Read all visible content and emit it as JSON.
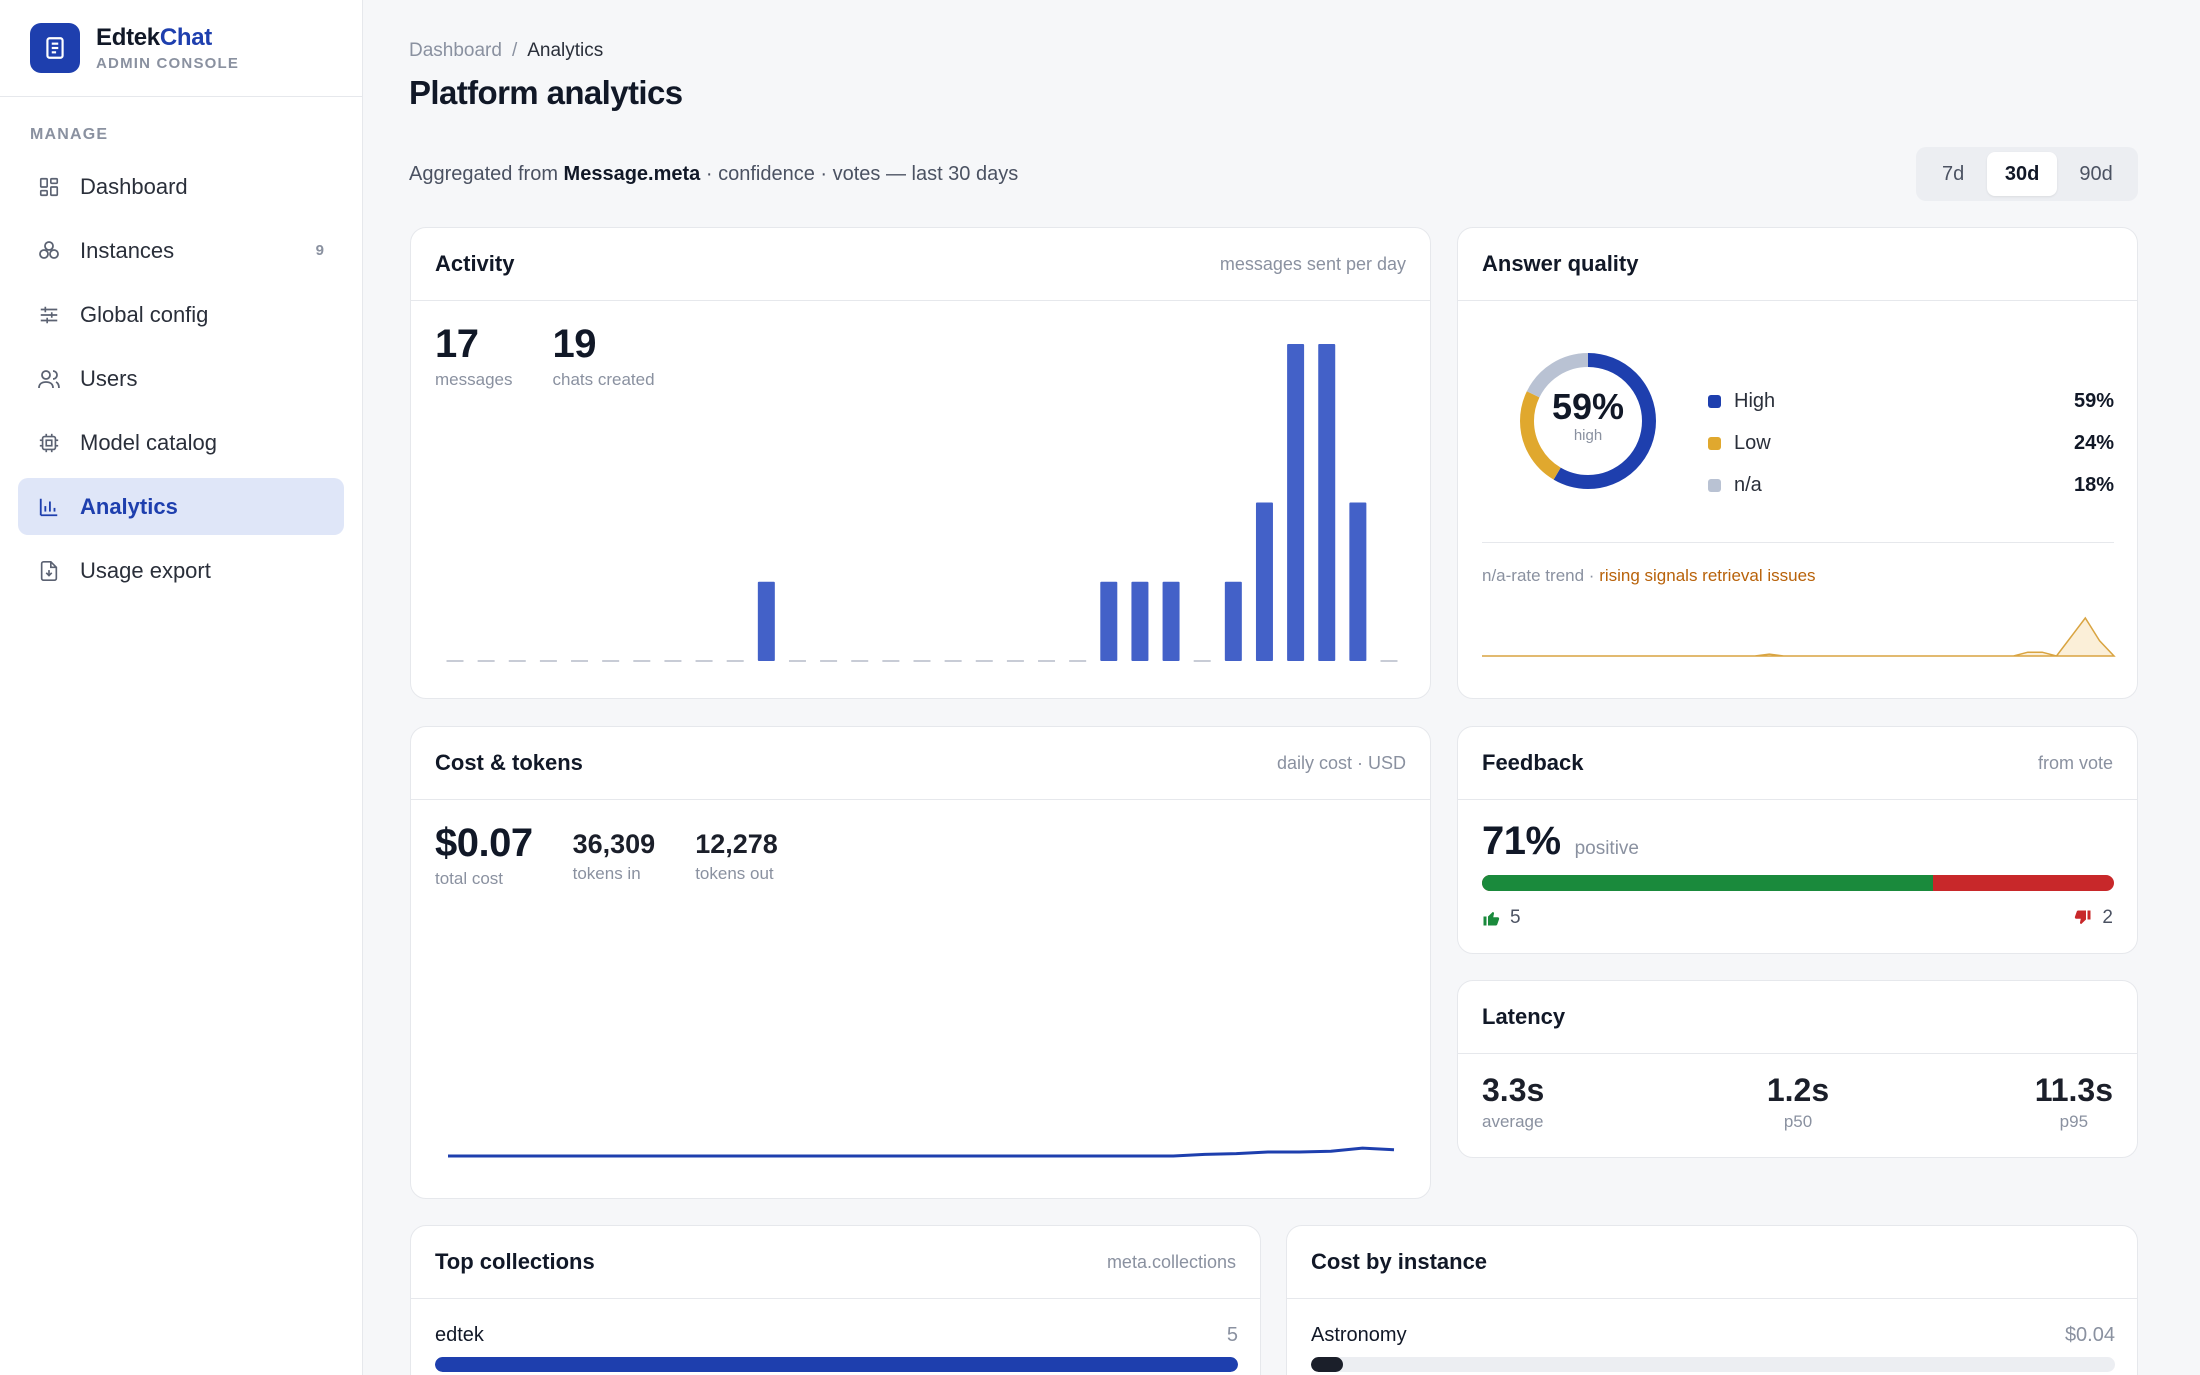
{
  "brand": {
    "name_main": "Edtek",
    "name_accent": "Chat",
    "subtitle": "ADMIN CONSOLE",
    "accent_color": "#1e3fae"
  },
  "sidebar": {
    "section": "MANAGE",
    "items": [
      {
        "label": "Dashboard",
        "icon": "grid-icon",
        "count": ""
      },
      {
        "label": "Instances",
        "icon": "cubes-icon",
        "count": "9"
      },
      {
        "label": "Global config",
        "icon": "sliders-icon",
        "count": ""
      },
      {
        "label": "Users",
        "icon": "users-icon",
        "count": ""
      },
      {
        "label": "Model catalog",
        "icon": "cpu-icon",
        "count": ""
      },
      {
        "label": "Analytics",
        "icon": "bar-chart-icon",
        "count": "",
        "active": true
      },
      {
        "label": "Usage export",
        "icon": "file-download-icon",
        "count": ""
      }
    ]
  },
  "header": {
    "breadcrumb": [
      "Dashboard",
      "Analytics"
    ],
    "title": "Platform analytics",
    "subtitle_pre": "Aggregated from",
    "subtitle_bold": "Message.meta",
    "subtitle_post": "· confidence · votes — last 30 days",
    "ranges": [
      "7d",
      "30d",
      "90d"
    ],
    "selected_range": "30d"
  },
  "activity": {
    "title": "Activity",
    "note": "messages sent per day",
    "messages_value": "17",
    "messages_label": "messages",
    "chats_value": "19",
    "chats_label": "chats created"
  },
  "quality": {
    "title": "Answer quality",
    "center_value": "59%",
    "center_label": "high",
    "legend": [
      {
        "label": "High",
        "value": "59%",
        "color": "#1e3fae"
      },
      {
        "label": "Low",
        "value": "24%",
        "color": "#e0a82e"
      },
      {
        "label": "n/a",
        "value": "18%",
        "color": "#b9c2d3"
      }
    ],
    "trend_label": "n/a-rate trend ·",
    "trend_warning": "rising signals retrieval issues",
    "warning_color": "#b8620a"
  },
  "cost": {
    "title": "Cost & tokens",
    "note": "daily cost · USD",
    "total_value": "$0.07",
    "total_label": "total cost",
    "tokens_in_value": "36,309",
    "tokens_in_label": "tokens in",
    "tokens_out_value": "12,278",
    "tokens_out_label": "tokens out"
  },
  "feedback": {
    "title": "Feedback",
    "note": "from vote",
    "percent": "71%",
    "percent_label": "positive",
    "up_count": "5",
    "down_count": "2",
    "positive_fraction": 0.714,
    "positive_color": "#1a8a3c",
    "negative_color": "#c8282a"
  },
  "latency": {
    "title": "Latency",
    "average_value": "3.3s",
    "average_label": "average",
    "p50_value": "1.2s",
    "p50_label": "p50",
    "p95_value": "11.3s",
    "p95_label": "p95"
  },
  "collections": {
    "title": "Top collections",
    "note": "meta.collections",
    "rows": [
      {
        "label": "edtek",
        "value": "5",
        "fraction": 1.0
      }
    ]
  },
  "cost_by_instance": {
    "title": "Cost by instance",
    "rows": [
      {
        "label": "Astronomy",
        "value": "$0.04",
        "fraction": 0.04
      }
    ]
  },
  "chart_data": [
    {
      "type": "bar",
      "title": "Activity",
      "ylabel": "messages sent per day",
      "x": [
        1,
        2,
        3,
        4,
        5,
        6,
        7,
        8,
        9,
        10,
        11,
        12,
        13,
        14,
        15,
        16,
        17,
        18,
        19,
        20,
        21,
        22,
        23,
        24,
        25,
        26,
        27,
        28,
        29,
        30,
        31
      ],
      "values": [
        0,
        0,
        0,
        0,
        0,
        0,
        0,
        0,
        0,
        0,
        1,
        0,
        0,
        0,
        0,
        0,
        0,
        0,
        0,
        0,
        0,
        1,
        1,
        1,
        0,
        1,
        2,
        4,
        4,
        2,
        0
      ],
      "ylim": [
        0,
        4
      ]
    },
    {
      "type": "pie",
      "title": "Answer quality",
      "categories": [
        "High",
        "Low",
        "n/a"
      ],
      "values": [
        59,
        24,
        18
      ]
    },
    {
      "type": "area",
      "title": "n/a-rate trend",
      "values": [
        0,
        0,
        0,
        0,
        0,
        0,
        0,
        0,
        0,
        0,
        0,
        0,
        0,
        0,
        0,
        0,
        0,
        0,
        0,
        0,
        0.05,
        0,
        0,
        0,
        0,
        0,
        0,
        0,
        0,
        0,
        0,
        0,
        0,
        0,
        0,
        0,
        0,
        0,
        0.1,
        0.1,
        0,
        0.5,
        1,
        0.4,
        0
      ],
      "ylim": [
        0,
        1
      ]
    },
    {
      "type": "line",
      "title": "Cost & tokens",
      "ylabel": "daily cost · USD",
      "values": [
        0,
        0,
        0,
        0,
        0,
        0,
        0,
        0,
        0,
        0,
        0,
        0,
        0,
        0,
        0,
        0,
        0,
        0,
        0,
        0,
        0,
        0,
        0,
        0,
        0.002,
        0.003,
        0.005,
        0.005,
        0.006,
        0.01,
        0.008
      ],
      "ylim": [
        0,
        0.4
      ]
    }
  ]
}
